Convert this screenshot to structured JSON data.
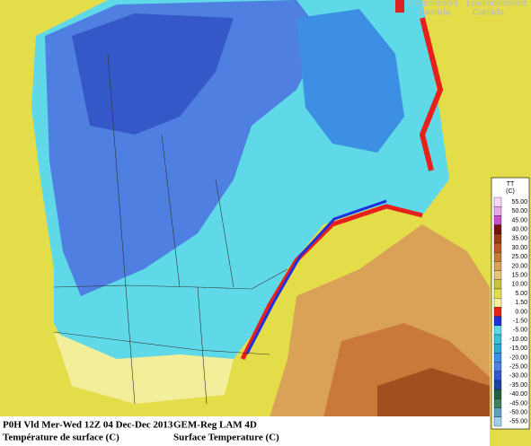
{
  "header": {
    "line1_en": "Environment",
    "line1_fr": "Environnement",
    "line2_en": "Canada",
    "line2_fr": "Canada"
  },
  "legend": {
    "title": "TT",
    "unit": "(C)",
    "items": [
      {
        "label": "55.00",
        "color": "#f8d8f4"
      },
      {
        "label": "50.00",
        "color": "#e8a8e8"
      },
      {
        "label": "45.00",
        "color": "#c850c8"
      },
      {
        "label": "40.00",
        "color": "#7a1010"
      },
      {
        "label": "35.00",
        "color": "#9a3a18"
      },
      {
        "label": "30.00",
        "color": "#b85828"
      },
      {
        "label": "25.00",
        "color": "#c97a3a"
      },
      {
        "label": "20.00",
        "color": "#d9a257"
      },
      {
        "label": "15.00",
        "color": "#e8c47a"
      },
      {
        "label": "10.00",
        "color": "#c8c040"
      },
      {
        "label": "5.00",
        "color": "#e4dd4a"
      },
      {
        "label": "1.50",
        "color": "#f2ee9a"
      },
      {
        "label": "0.00",
        "color": "#e8201c"
      },
      {
        "label": "-1.50",
        "color": "#2030e0"
      },
      {
        "label": "-5.00",
        "color": "#5fd8e8"
      },
      {
        "label": "-10.00",
        "color": "#40c0d8"
      },
      {
        "label": "-15.00",
        "color": "#30a8d0"
      },
      {
        "label": "-20.00",
        "color": "#3d8fe4"
      },
      {
        "label": "-25.00",
        "color": "#4f7fe0"
      },
      {
        "label": "-30.00",
        "color": "#3558c8"
      },
      {
        "label": "-35.00",
        "color": "#2040a0"
      },
      {
        "label": "-40.00",
        "color": "#206040"
      },
      {
        "label": "-45.00",
        "color": "#408060"
      },
      {
        "label": "-50.00",
        "color": "#60a0c0"
      },
      {
        "label": "-55.00",
        "color": "#a0d0e8"
      }
    ]
  },
  "footer": {
    "left": [
      "P0H Vld Mer-Wed 12Z 04 Dec-Dec 2013",
      "Température de surface (C)"
    ],
    "right": [
      "GEM-Reg LAM 4D",
      "Surface Temperature (C)"
    ]
  }
}
